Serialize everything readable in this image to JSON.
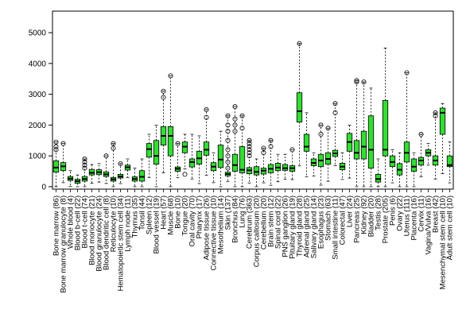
{
  "chart_data": {
    "type": "box",
    "title": "",
    "xlabel": "",
    "ylabel": "",
    "ylim": [
      -80,
      5700
    ],
    "yticks": [
      0,
      1000,
      2000,
      3000,
      4000,
      5000
    ],
    "fill_color": "#33dd33",
    "median_color": "#000000",
    "grid": false,
    "categories": [
      {
        "label": "Bone marrow (86)",
        "box": [
          0,
          470,
          620,
          840,
          1120,
          1450
        ],
        "outliers": [
          1200,
          1300,
          1450
        ]
      },
      {
        "label": "Bone marrow granulocyte (8)",
        "box": [
          0,
          520,
          660,
          780,
          1100,
          1400
        ],
        "outliers": [
          1400
        ]
      },
      {
        "label": "Whole blood (4)",
        "box": [
          0,
          200,
          260,
          330,
          420,
          520
        ],
        "outliers": []
      },
      {
        "label": "Blood b-cell (22)",
        "box": [
          0,
          110,
          180,
          240,
          300,
          380
        ],
        "outliers": []
      },
      {
        "label": "Blood t-cell (74)",
        "box": [
          0,
          180,
          250,
          330,
          500,
          900
        ],
        "outliers": [
          600,
          700,
          800,
          900
        ]
      },
      {
        "label": "Blood monocyte (21)",
        "box": [
          0,
          380,
          450,
          560,
          620,
          720
        ],
        "outliers": []
      },
      {
        "label": "Blood granulocyte (24)",
        "box": [
          0,
          390,
          470,
          550,
          650,
          750
        ],
        "outliers": []
      },
      {
        "label": "Blood dendritic cell (8)",
        "box": [
          0,
          330,
          400,
          480,
          600,
          1000
        ],
        "outliers": [
          1000
        ]
      },
      {
        "label": "Reticulocyte (10)",
        "box": [
          0,
          180,
          240,
          300,
          380,
          1400
        ],
        "outliers": [
          1250,
          1400
        ]
      },
      {
        "label": "Hematopoietic stem cell (34)",
        "box": [
          0,
          280,
          330,
          400,
          520,
          750
        ],
        "outliers": [
          750
        ]
      },
      {
        "label": "Lymph node (11)",
        "box": [
          0,
          540,
          630,
          700,
          820,
          900
        ],
        "outliers": []
      },
      {
        "label": "Thymus (35)",
        "box": [
          0,
          180,
          250,
          320,
          500,
          600
        ],
        "outliers": []
      },
      {
        "label": "Tonsil (44)",
        "box": [
          0,
          180,
          320,
          520,
          800,
          900
        ],
        "outliers": []
      },
      {
        "label": "Spleen (12)",
        "box": [
          0,
          960,
          1220,
          1400,
          1600,
          1700
        ],
        "outliers": []
      },
      {
        "label": "Blood vessel (19)",
        "box": [
          0,
          730,
          1000,
          1500,
          1900,
          2000
        ],
        "outliers": []
      },
      {
        "label": "Heart (57)",
        "box": [
          0,
          1350,
          1650,
          1950,
          2600,
          3100
        ],
        "outliers": [
          2900,
          3100
        ]
      },
      {
        "label": "Muscle (68)",
        "box": [
          0,
          1000,
          1650,
          1950,
          2800,
          3600
        ],
        "outliers": [
          3600
        ]
      },
      {
        "label": "Bone (10)",
        "box": [
          0,
          500,
          580,
          640,
          900,
          1400
        ],
        "outliers": [
          1400
        ]
      },
      {
        "label": "Tongue (20)",
        "box": [
          0,
          1100,
          1300,
          1450,
          1600,
          1700
        ],
        "outliers": [
          400
        ]
      },
      {
        "label": "Oral cavity (70)",
        "box": [
          0,
          640,
          800,
          900,
          1150,
          1700
        ],
        "outliers": []
      },
      {
        "label": "Pharynx (17)",
        "box": [
          0,
          730,
          920,
          1150,
          1350,
          1650
        ],
        "outliers": []
      },
      {
        "label": "Adipose tissue (26)",
        "box": [
          0,
          1020,
          1200,
          1450,
          1650,
          2500
        ],
        "outliers": [
          2250,
          2500
        ]
      },
      {
        "label": "Connective tissue (10)",
        "box": [
          0,
          520,
          650,
          780,
          950,
          1100
        ],
        "outliers": []
      },
      {
        "label": "Mesothelium (14)",
        "box": [
          0,
          620,
          880,
          1350,
          1650,
          1800
        ],
        "outliers": []
      },
      {
        "label": "Skin (137)",
        "box": [
          0,
          350,
          410,
          470,
          900,
          2300
        ],
        "outliers": [
          600,
          800,
          1000,
          1200,
          1500,
          1800,
          2000,
          2300
        ]
      },
      {
        "label": "Bronchus (84)",
        "box": [
          0,
          500,
          700,
          1050,
          1400,
          2600
        ],
        "outliers": [
          1800,
          2000,
          2200,
          2600
        ]
      },
      {
        "label": "Lung (76)",
        "box": [
          0,
          450,
          550,
          1300,
          1650,
          2300
        ],
        "outliers": [
          1900,
          2300
        ]
      },
      {
        "label": "Cerebrum (363)",
        "box": [
          0,
          420,
          530,
          620,
          900,
          1500
        ],
        "outliers": [
          1000,
          1100,
          1200,
          1300,
          1400,
          1500
        ]
      },
      {
        "label": "Corpus callosum (20)",
        "box": [
          0,
          380,
          480,
          650,
          800,
          900
        ],
        "outliers": []
      },
      {
        "label": "Cerebellum (20)",
        "box": [
          0,
          410,
          520,
          600,
          850,
          1250
        ],
        "outliers": [
          1100,
          1250
        ]
      },
      {
        "label": "Brain stem (12)",
        "box": [
          0,
          450,
          580,
          720,
          950,
          1500
        ],
        "outliers": [
          1300,
          1500
        ]
      },
      {
        "label": "Spinal cord (22)",
        "box": [
          0,
          520,
          620,
          760,
          950,
          1050
        ],
        "outliers": []
      },
      {
        "label": "PNS ganglion (26)",
        "box": [
          0,
          530,
          600,
          720,
          1000,
          1050
        ],
        "outliers": []
      },
      {
        "label": "Pituitary gland (19)",
        "box": [
          0,
          500,
          600,
          680,
          850,
          1200
        ],
        "outliers": [
          1200
        ]
      },
      {
        "label": "Thyroid gland (28)",
        "box": [
          0,
          2100,
          2450,
          3050,
          4000,
          4650
        ],
        "outliers": [
          4650
        ]
      },
      {
        "label": "Adrenal gland (25)",
        "box": [
          0,
          1150,
          1300,
          1700,
          2200,
          2400
        ],
        "outliers": []
      },
      {
        "label": "Salivary gland (14)",
        "box": [
          0,
          680,
          770,
          900,
          1000,
          1100
        ],
        "outliers": []
      },
      {
        "label": "Esophagus (23)",
        "box": [
          0,
          650,
          850,
          1050,
          1200,
          2000
        ],
        "outliers": [
          1700,
          2000
        ]
      },
      {
        "label": "Stomach (63)",
        "box": [
          0,
          730,
          900,
          1100,
          1400,
          1900
        ],
        "outliers": [
          1900
        ]
      },
      {
        "label": "Small intestine (11)",
        "box": [
          0,
          980,
          1080,
          1180,
          1350,
          2700
        ],
        "outliers": [
          2400,
          2700
        ]
      },
      {
        "label": "Colorectal (47)",
        "box": [
          0,
          550,
          650,
          760,
          900,
          1100
        ],
        "outliers": []
      },
      {
        "label": "Liver (24)",
        "box": [
          0,
          1150,
          1450,
          1730,
          1900,
          2000
        ],
        "outliers": []
      },
      {
        "label": "Pancreas (25)",
        "box": [
          0,
          900,
          1100,
          1500,
          2000,
          3450
        ],
        "outliers": [
          3400,
          3450
        ]
      },
      {
        "label": "Kidney (92)",
        "box": [
          0,
          900,
          1300,
          1800,
          2300,
          3400
        ],
        "outliers": [
          3400
        ]
      },
      {
        "label": "Bladder (20)",
        "box": [
          0,
          600,
          1200,
          2300,
          3200,
          3200
        ],
        "outliers": []
      },
      {
        "label": "Testis (28)",
        "box": [
          0,
          150,
          250,
          400,
          650,
          900
        ],
        "outliers": []
      },
      {
        "label": "Prostate (205)",
        "box": [
          0,
          1000,
          1200,
          2800,
          4500,
          4500
        ],
        "outliers": []
      },
      {
        "label": "Penis (6)",
        "box": [
          0,
          650,
          800,
          1000,
          1150,
          1200
        ],
        "outliers": []
      },
      {
        "label": "Ovary (22)",
        "box": [
          0,
          380,
          550,
          750,
          1000,
          1100
        ],
        "outliers": []
      },
      {
        "label": "Uterus (111)",
        "box": [
          0,
          800,
          1100,
          1450,
          1700,
          3700
        ],
        "outliers": [
          3700
        ]
      },
      {
        "label": "Placenta (16)",
        "box": [
          0,
          500,
          650,
          900,
          1050,
          1100
        ],
        "outliers": []
      },
      {
        "label": "Cervix (11)",
        "box": [
          0,
          700,
          850,
          950,
          1100,
          1700
        ],
        "outliers": [
          1700
        ]
      },
      {
        "label": "Vagina/Vulva (16)",
        "box": [
          0,
          1000,
          1100,
          1200,
          1350,
          1400
        ],
        "outliers": []
      },
      {
        "label": "Breast (42)",
        "box": [
          0,
          700,
          850,
          1000,
          1300,
          2400
        ],
        "outliers": [
          2300,
          2400
        ]
      },
      {
        "label": "Mesenchymal stem cell (10)",
        "box": [
          0,
          1700,
          2400,
          2550,
          2700,
          2700
        ],
        "outliers": []
      },
      {
        "label": "Adult stem cell (10)",
        "box": [
          0,
          650,
          700,
          1000,
          1450,
          1450
        ],
        "outliers": []
      }
    ]
  }
}
